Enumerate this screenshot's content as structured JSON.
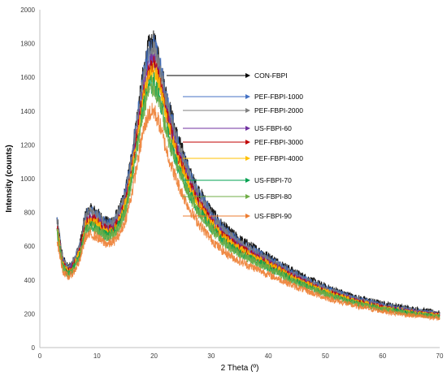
{
  "chart_data": {
    "type": "line",
    "title": "",
    "xlabel": "2 Theta (º)",
    "ylabel": "Intensity (counts)",
    "xlim": [
      0,
      70
    ],
    "ylim": [
      0,
      2000
    ],
    "xticks": [
      0,
      10,
      20,
      30,
      40,
      50,
      60,
      70
    ],
    "yticks": [
      0,
      200,
      400,
      600,
      800,
      1000,
      1200,
      1400,
      1600,
      1800,
      2000
    ],
    "grid": false,
    "legend_placement": "annotations with arrows inside plot",
    "profile_x": [
      3,
      4,
      5,
      6,
      7,
      8,
      9,
      10,
      11,
      12,
      13,
      14,
      15,
      16,
      17,
      18,
      19,
      20,
      21,
      22,
      23,
      24,
      25,
      26,
      27,
      28,
      30,
      32,
      35,
      38,
      40,
      42,
      45,
      50,
      55,
      60,
      65,
      70
    ],
    "series": [
      {
        "name": "CON-FBPI",
        "color": "#000000",
        "values": [
          760,
          530,
          470,
          520,
          610,
          790,
          820,
          800,
          760,
          740,
          760,
          820,
          930,
          1120,
          1360,
          1600,
          1780,
          1810,
          1700,
          1520,
          1380,
          1260,
          1160,
          1060,
          980,
          920,
          810,
          720,
          640,
          580,
          540,
          500,
          440,
          360,
          300,
          260,
          230,
          205
        ]
      },
      {
        "name": "PEF-FBPI-1000",
        "color": "#4472C4",
        "values": [
          750,
          520,
          465,
          515,
          600,
          780,
          810,
          790,
          750,
          730,
          750,
          810,
          920,
          1100,
          1340,
          1580,
          1750,
          1790,
          1680,
          1500,
          1360,
          1240,
          1140,
          1045,
          965,
          905,
          795,
          705,
          625,
          565,
          525,
          485,
          425,
          350,
          290,
          250,
          220,
          200
        ]
      },
      {
        "name": "PEF-FBPI-2000",
        "color": "#7F7F7F",
        "values": [
          745,
          515,
          460,
          510,
          595,
          775,
          805,
          785,
          745,
          725,
          745,
          805,
          910,
          1090,
          1320,
          1560,
          1720,
          1760,
          1650,
          1480,
          1340,
          1220,
          1120,
          1030,
          950,
          890,
          785,
          695,
          615,
          555,
          515,
          478,
          420,
          345,
          287,
          248,
          218,
          198
        ]
      },
      {
        "name": "US-FBPI-60",
        "color": "#7030A0",
        "values": [
          720,
          500,
          450,
          495,
          575,
          740,
          765,
          750,
          715,
          695,
          715,
          770,
          870,
          1040,
          1270,
          1500,
          1660,
          1700,
          1590,
          1420,
          1290,
          1170,
          1080,
          990,
          915,
          855,
          755,
          670,
          595,
          540,
          500,
          465,
          408,
          335,
          280,
          240,
          212,
          192
        ]
      },
      {
        "name": "PEF-FBPI-3000",
        "color": "#C00000",
        "values": [
          715,
          495,
          448,
          492,
          570,
          735,
          760,
          745,
          710,
          690,
          710,
          765,
          862,
          1030,
          1255,
          1480,
          1630,
          1670,
          1565,
          1400,
          1270,
          1155,
          1065,
          978,
          905,
          845,
          745,
          662,
          588,
          533,
          494,
          460,
          404,
          332,
          277,
          238,
          210,
          190
        ]
      },
      {
        "name": "PEF-FBPI-4000",
        "color": "#FFC000",
        "values": [
          710,
          492,
          445,
          488,
          565,
          725,
          750,
          735,
          700,
          682,
          702,
          755,
          850,
          1015,
          1235,
          1455,
          1600,
          1640,
          1540,
          1380,
          1250,
          1140,
          1050,
          965,
          893,
          835,
          736,
          655,
          582,
          528,
          490,
          456,
          400,
          329,
          275,
          236,
          208,
          188
        ]
      },
      {
        "name": "US-FBPI-70",
        "color": "#00A050",
        "values": [
          690,
          480,
          435,
          475,
          545,
          700,
          720,
          705,
          675,
          660,
          680,
          730,
          820,
          980,
          1190,
          1400,
          1540,
          1570,
          1470,
          1320,
          1195,
          1090,
          1005,
          925,
          858,
          803,
          710,
          630,
          560,
          508,
          472,
          440,
          387,
          318,
          266,
          229,
          202,
          183
        ]
      },
      {
        "name": "US-FBPI-80",
        "color": "#70AD47",
        "values": [
          680,
          472,
          430,
          468,
          538,
          690,
          710,
          696,
          666,
          651,
          671,
          720,
          808,
          965,
          1170,
          1375,
          1510,
          1540,
          1445,
          1298,
          1175,
          1073,
          990,
          911,
          845,
          792,
          700,
          622,
          553,
          502,
          467,
          435,
          383,
          315,
          263,
          227,
          200,
          181
        ]
      },
      {
        "name": "US-FBPI-90",
        "color": "#ED7D31",
        "values": [
          640,
          455,
          415,
          450,
          515,
          655,
          670,
          655,
          625,
          612,
          630,
          675,
          755,
          895,
          1080,
          1265,
          1380,
          1400,
          1320,
          1190,
          1080,
          985,
          908,
          836,
          776,
          727,
          642,
          572,
          510,
          465,
          433,
          404,
          357,
          295,
          248,
          215,
          190,
          172
        ]
      }
    ]
  }
}
